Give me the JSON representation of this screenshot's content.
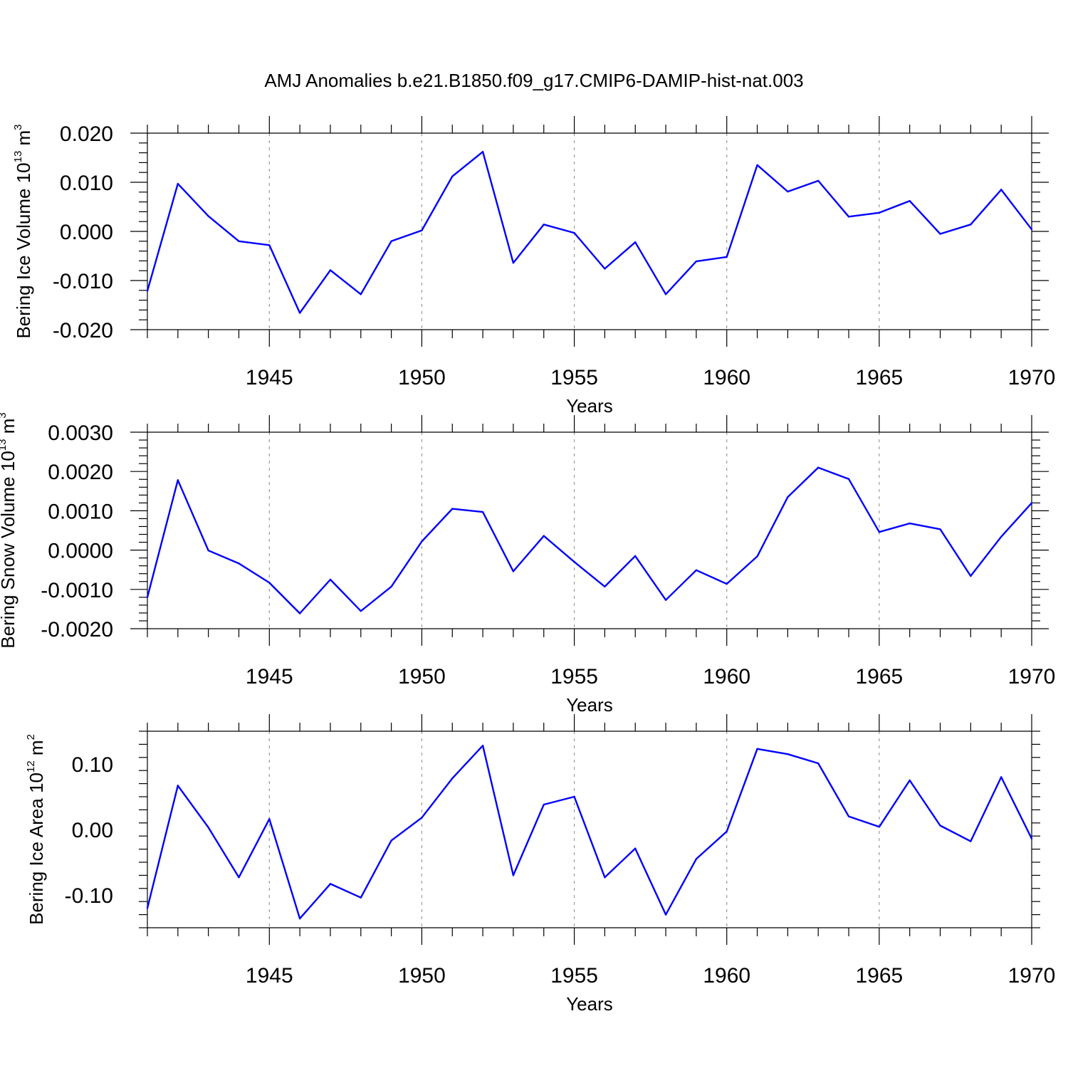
{
  "title": "AMJ Anomalies b.e21.B1850.f09_g17.CMIP6-DAMIP-hist-nat.003",
  "colors": {
    "series": "#0000ff",
    "axis": "#000000",
    "grid": "#999999"
  },
  "chart_data": [
    {
      "type": "line",
      "xlabel": "Years",
      "ylabel": {
        "text": "Bering Ice Volume 10",
        "sup": "13",
        "unit": " m",
        "unit_sup": "3"
      },
      "xlim": [
        1941,
        1970
      ],
      "ylim": [
        -0.02,
        0.02
      ],
      "x_ticks": [
        1945,
        1950,
        1955,
        1960,
        1965,
        1970
      ],
      "x_tick_labels": [
        "1945",
        "1950",
        "1955",
        "1960",
        "1965",
        "1970"
      ],
      "y_ticks": [
        0.02,
        0.01,
        0.0,
        -0.01,
        -0.02
      ],
      "y_tick_labels": [
        "0.020",
        "0.010",
        "0.000",
        "-0.010",
        "-0.020"
      ],
      "x": [
        1941,
        1942,
        1943,
        1944,
        1945,
        1946,
        1947,
        1948,
        1949,
        1950,
        1951,
        1952,
        1953,
        1954,
        1955,
        1956,
        1957,
        1958,
        1959,
        1960,
        1961,
        1962,
        1963,
        1964,
        1965,
        1966,
        1967,
        1968,
        1969,
        1970
      ],
      "values": [
        -0.0121,
        0.0097,
        0.0031,
        -0.002,
        -0.0028,
        -0.0166,
        -0.0079,
        -0.0128,
        -0.002,
        0.0002,
        0.0112,
        0.0162,
        -0.0064,
        0.0014,
        -0.0003,
        -0.0076,
        -0.0022,
        -0.0128,
        -0.0061,
        -0.0052,
        0.0135,
        0.0081,
        0.0103,
        0.003,
        0.0038,
        0.0062,
        -0.0005,
        0.0014,
        0.0085,
        0.0004
      ]
    },
    {
      "type": "line",
      "xlabel": "Years",
      "ylabel": {
        "text": "Bering Snow Volume 10",
        "sup": "13",
        "unit": " m",
        "unit_sup": "3"
      },
      "xlim": [
        1941,
        1970
      ],
      "ylim": [
        -0.002,
        0.003
      ],
      "x_ticks": [
        1945,
        1950,
        1955,
        1960,
        1965,
        1970
      ],
      "x_tick_labels": [
        "1945",
        "1950",
        "1955",
        "1960",
        "1965",
        "1970"
      ],
      "y_ticks": [
        0.003,
        0.002,
        0.001,
        0.0,
        -0.001,
        -0.002
      ],
      "y_tick_labels": [
        "0.0030",
        "0.0020",
        "0.0010",
        "0.0000",
        "-0.0010",
        "-0.0020"
      ],
      "x": [
        1941,
        1942,
        1943,
        1944,
        1945,
        1946,
        1947,
        1948,
        1949,
        1950,
        1951,
        1952,
        1953,
        1954,
        1955,
        1956,
        1957,
        1958,
        1959,
        1960,
        1961,
        1962,
        1963,
        1964,
        1965,
        1966,
        1967,
        1968,
        1969,
        1970
      ],
      "values": [
        -0.0012,
        0.00178,
        -1e-05,
        -0.00034,
        -0.00083,
        -0.00161,
        -0.00075,
        -0.00155,
        -0.00093,
        0.00022,
        0.00105,
        0.00097,
        -0.00054,
        0.00036,
        -0.0003,
        -0.00093,
        -0.00015,
        -0.00127,
        -0.00051,
        -0.00086,
        -0.00016,
        0.00135,
        0.0021,
        0.00181,
        0.00046,
        0.00068,
        0.00053,
        -0.00066,
        0.00034,
        0.0012
      ]
    },
    {
      "type": "line",
      "xlabel": "Years",
      "ylabel": {
        "text": "Bering Ice Area 10",
        "sup": "12",
        "unit": " m",
        "unit_sup": "2"
      },
      "xlim": [
        1941,
        1970
      ],
      "ylim": [
        -0.15,
        0.15
      ],
      "x_ticks": [
        1945,
        1950,
        1955,
        1960,
        1965,
        1970
      ],
      "x_tick_labels": [
        "1945",
        "1950",
        "1955",
        "1960",
        "1965",
        "1970"
      ],
      "y_ticks": [
        0.1,
        0.0,
        -0.1
      ],
      "y_tick_labels": [
        "0.10",
        "0.00",
        "-0.10"
      ],
      "x": [
        1941,
        1942,
        1943,
        1944,
        1945,
        1946,
        1947,
        1948,
        1949,
        1950,
        1951,
        1952,
        1953,
        1954,
        1955,
        1956,
        1957,
        1958,
        1959,
        1960,
        1961,
        1962,
        1963,
        1964,
        1965,
        1966,
        1967,
        1968,
        1969,
        1970
      ],
      "values": [
        -0.12,
        0.067,
        0.003,
        -0.073,
        0.016,
        -0.136,
        -0.083,
        -0.104,
        -0.017,
        0.018,
        0.078,
        0.128,
        -0.07,
        0.038,
        0.05,
        -0.073,
        -0.029,
        -0.13,
        -0.045,
        -0.003,
        0.123,
        0.115,
        0.101,
        0.02,
        0.004,
        0.075,
        0.006,
        -0.018,
        0.08,
        -0.014
      ]
    }
  ]
}
